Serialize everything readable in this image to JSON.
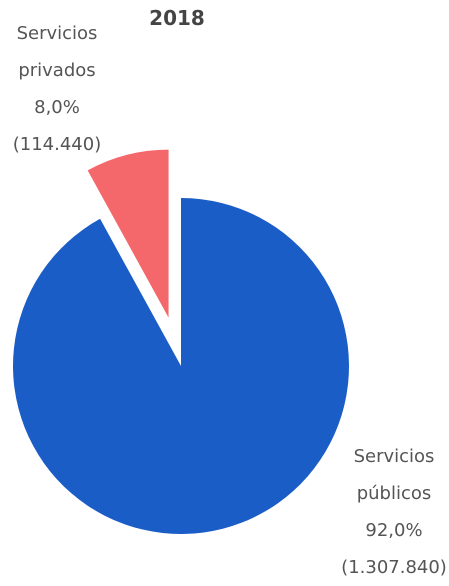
{
  "chart_data": {
    "type": "pie",
    "title": "2018",
    "categories": [
      "Servicios públicos",
      "Servicios privados"
    ],
    "values": [
      92.0,
      8.0
    ],
    "value_labels": [
      "92,0%",
      "8,0%"
    ],
    "counts": [
      1307840,
      114440
    ],
    "count_labels": [
      "(1.307.840)",
      "(114.440)"
    ],
    "colors": [
      "#1a5dc6",
      "#f4686b"
    ],
    "exploded": [
      false,
      true
    ]
  }
}
